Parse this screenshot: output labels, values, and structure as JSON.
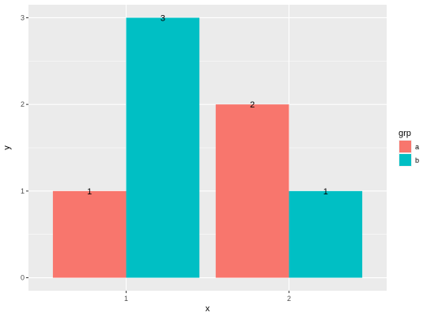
{
  "chart_data": {
    "type": "bar",
    "categories": [
      "1",
      "2"
    ],
    "series": [
      {
        "name": "a",
        "values": [
          1,
          2
        ],
        "color": "#F8766D"
      },
      {
        "name": "b",
        "values": [
          3,
          1
        ],
        "color": "#00BFC4"
      }
    ],
    "xlabel": "x",
    "ylabel": "y",
    "ylim": [
      0,
      3
    ],
    "yticks": [
      "0",
      "1",
      "2",
      "3"
    ],
    "legend": {
      "title": "grp",
      "position": "right"
    },
    "colors": {
      "panel_background": "#EBEBEB",
      "gridline": "#FFFFFF",
      "bar_a": "#F8766D",
      "bar_b": "#00BFC4"
    },
    "grid": true,
    "bar_value_labels": true
  }
}
